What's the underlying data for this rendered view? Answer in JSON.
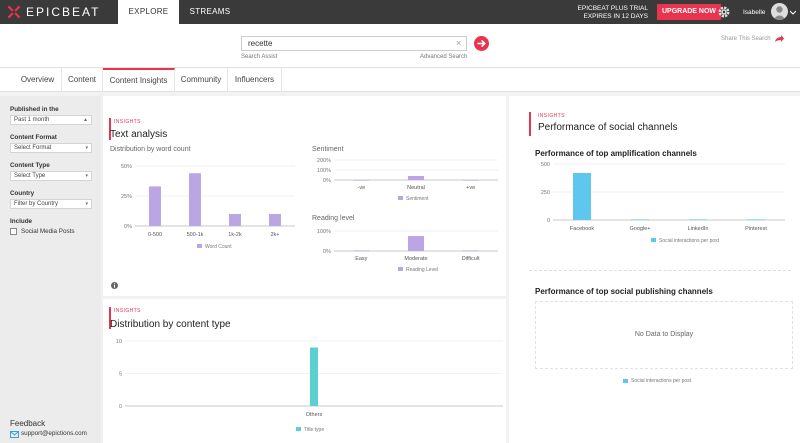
{
  "topbar": {
    "brand": "EPICBEAT",
    "tabs": [
      "EXPLORE",
      "STREAMS"
    ],
    "trial_line1": "EPICBEAT PLUS TRIAL",
    "trial_line2": "EXPIRES IN 12 DAYS",
    "upgrade_label": "UPGRADE NOW",
    "user_name": "Isabelle",
    "colors": {
      "bar": "#3a3a3a",
      "accent": "#e8344e"
    }
  },
  "search": {
    "value": "recette",
    "clear": "×",
    "assist_label": "Search Assist",
    "advanced_label": "Advanced Search",
    "share_label": "Share This Search"
  },
  "nav": {
    "tabs": [
      "Overview",
      "Content",
      "Content Insights",
      "Community",
      "Influencers"
    ],
    "active": "Content Insights"
  },
  "sidebar": {
    "published_label": "Published in the",
    "published_value": "Past 1 month",
    "format_label": "Content Format",
    "format_value": "Select Format",
    "type_label": "Content Type",
    "type_value": "Select Type",
    "country_label": "Country",
    "country_value": "Filter by Country",
    "include_label": "Include",
    "social_label": "Social Media Posts",
    "feedback_label": "Feedback",
    "support_email": "support@epictions.com"
  },
  "insights_badge": "INSIGHTS",
  "text_analysis": {
    "title": "Text analysis",
    "wordcount_title": "Distribution by word count",
    "sentiment_title": "Sentiment",
    "reading_title": "Reading level"
  },
  "content_type_card": {
    "title": "Distribution by content type"
  },
  "social_card": {
    "title": "Performance of social channels",
    "amplification_title": "Performance of top amplification channels",
    "publishing_title": "Performance of top social publishing channels",
    "no_data": "No Data to Display",
    "legend": "Social interactions per post"
  },
  "chart_data": [
    {
      "type": "bar",
      "title": "Distribution by word count",
      "categories": [
        "0-500",
        "500-1k",
        "1k-2k",
        "2k+"
      ],
      "values": [
        33,
        44,
        10,
        10
      ],
      "ylim": [
        0,
        50
      ],
      "yticks": [
        "50%",
        "25%",
        "0%"
      ],
      "legend": "Word Count",
      "color": "#b9a6e3"
    },
    {
      "type": "bar",
      "title": "Sentiment",
      "categories": [
        "-ve",
        "Neutral",
        "+ve"
      ],
      "values": [
        1,
        40,
        1
      ],
      "ylim": [
        0,
        200
      ],
      "yticks": [
        "200%",
        "100%",
        "0%"
      ],
      "legend": "Sentiment",
      "color": "#b9a6e3"
    },
    {
      "type": "bar",
      "title": "Reading level",
      "categories": [
        "Easy",
        "Moderate",
        "Difficult"
      ],
      "values": [
        3,
        75,
        3
      ],
      "ylim": [
        0,
        100
      ],
      "yticks": [
        "100%",
        "0%"
      ],
      "legend": "Reading Level",
      "color": "#b9a6e3"
    },
    {
      "type": "bar",
      "title": "Distribution by content type",
      "categories": [
        "Others"
      ],
      "values": [
        9
      ],
      "ylim": [
        0,
        10
      ],
      "yticks": [
        "10",
        "5",
        "0"
      ],
      "legend": "Title type",
      "color": "#5ccfd0"
    },
    {
      "type": "bar",
      "title": "Performance of top amplification channels",
      "categories": [
        "Facebook",
        "Google+",
        "LinkedIn",
        "Pinterest"
      ],
      "values": [
        420,
        5,
        5,
        5
      ],
      "ylim": [
        0,
        500
      ],
      "yticks": [
        "500",
        "250",
        "0"
      ],
      "legend": "Social interactions per post",
      "color": "#5fc6ee"
    }
  ]
}
